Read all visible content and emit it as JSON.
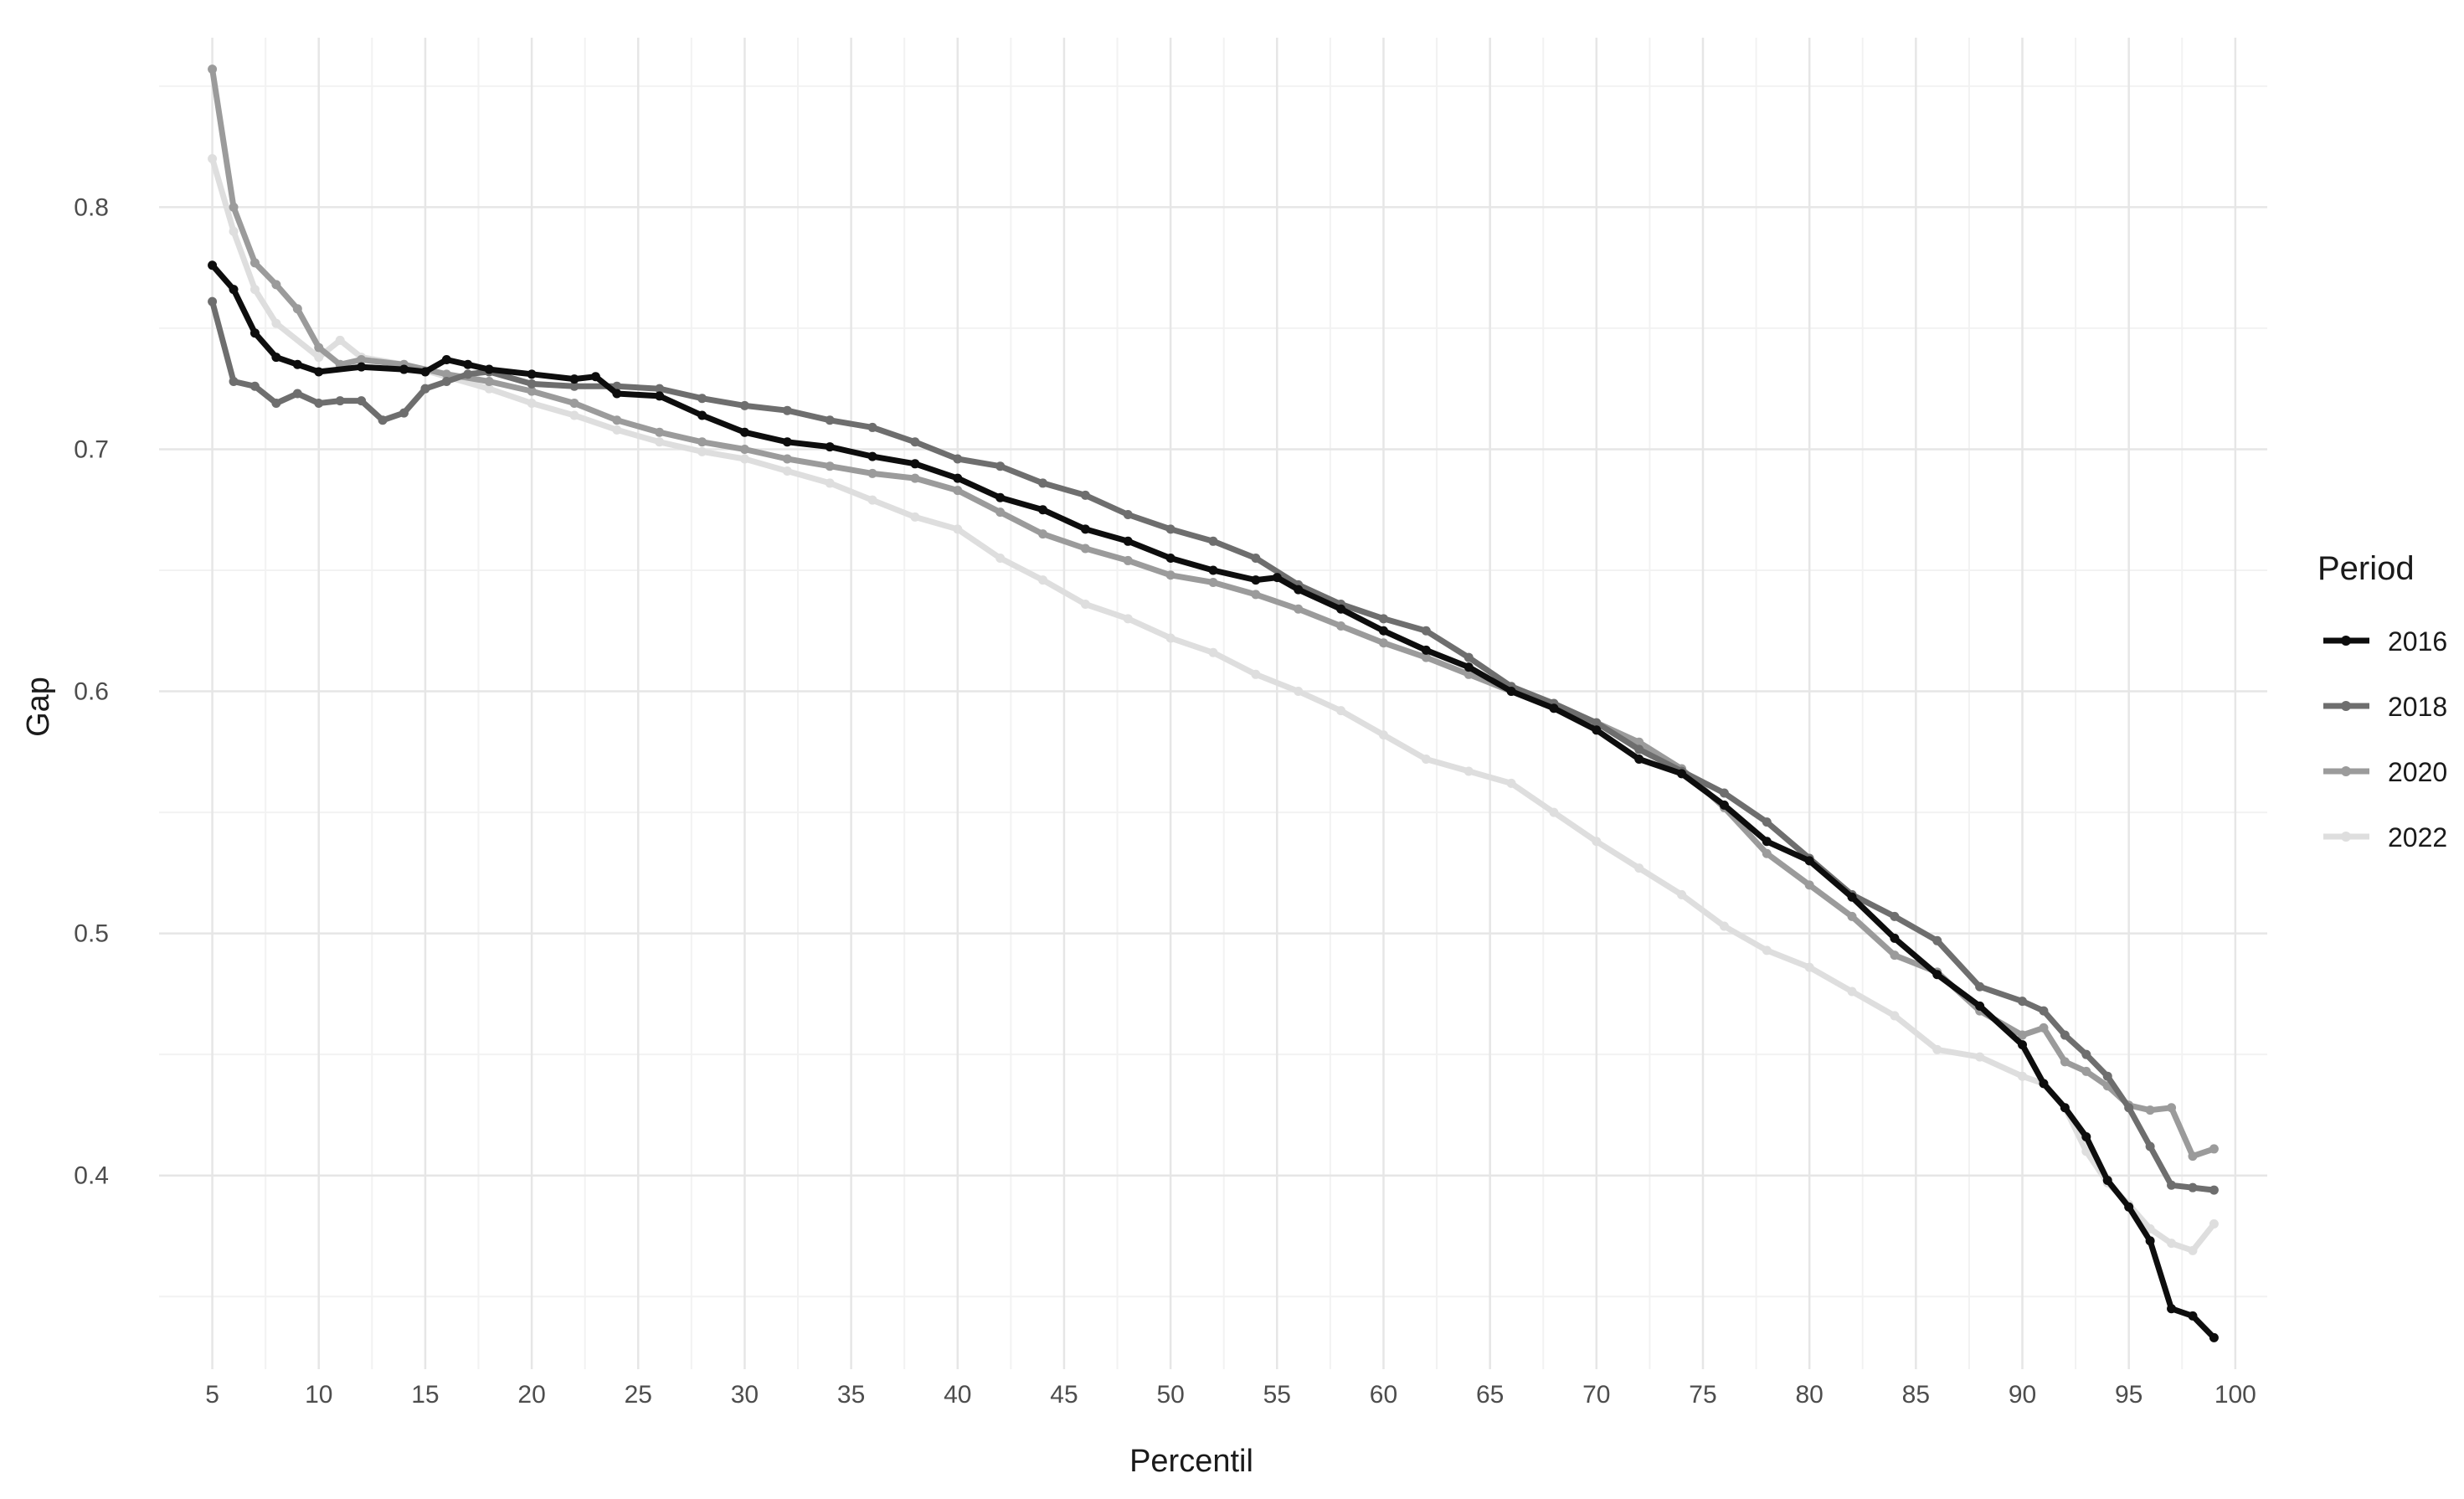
{
  "chart_data": {
    "type": "line",
    "xlabel": "Percentil",
    "ylabel": "Gap",
    "xlim": [
      2.5,
      101.5
    ],
    "ylim": [
      0.32,
      0.87
    ],
    "x_ticks": [
      5,
      10,
      15,
      20,
      25,
      30,
      35,
      40,
      45,
      50,
      55,
      60,
      65,
      70,
      75,
      80,
      85,
      90,
      95,
      100
    ],
    "y_ticks": [
      0.4,
      0.5,
      0.6,
      0.7,
      0.8
    ],
    "grid": true,
    "legend": {
      "title": "Period",
      "position": "right"
    },
    "series": [
      {
        "name": "2016",
        "color": "#0d0d0d",
        "x": [
          5,
          6,
          7,
          8,
          9,
          10,
          12,
          14,
          15,
          16,
          17,
          18,
          20,
          22,
          23,
          24,
          26,
          28,
          30,
          32,
          34,
          36,
          38,
          40,
          42,
          44,
          46,
          48,
          50,
          52,
          54,
          55,
          56,
          58,
          60,
          62,
          64,
          66,
          68,
          70,
          72,
          74,
          76,
          78,
          80,
          82,
          84,
          86,
          88,
          90,
          91,
          92,
          93,
          94,
          95,
          96,
          97,
          98,
          99
        ],
        "values": [
          0.776,
          0.766,
          0.748,
          0.738,
          0.735,
          0.732,
          0.734,
          0.733,
          0.732,
          0.737,
          0.735,
          0.733,
          0.731,
          0.729,
          0.73,
          0.723,
          0.722,
          0.714,
          0.707,
          0.703,
          0.701,
          0.697,
          0.694,
          0.688,
          0.68,
          0.675,
          0.667,
          0.662,
          0.655,
          0.65,
          0.646,
          0.647,
          0.642,
          0.634,
          0.625,
          0.617,
          0.61,
          0.6,
          0.593,
          0.584,
          0.572,
          0.566,
          0.553,
          0.538,
          0.53,
          0.515,
          0.498,
          0.483,
          0.47,
          0.454,
          0.438,
          0.428,
          0.416,
          0.398,
          0.387,
          0.373,
          0.345,
          0.342,
          0.333
        ]
      },
      {
        "name": "2018",
        "color": "#6e6e6e",
        "x": [
          5,
          6,
          7,
          8,
          9,
          10,
          11,
          12,
          13,
          14,
          15,
          16,
          17,
          18,
          20,
          22,
          24,
          26,
          28,
          30,
          32,
          34,
          36,
          38,
          40,
          42,
          44,
          46,
          48,
          50,
          52,
          54,
          56,
          58,
          60,
          62,
          64,
          66,
          68,
          70,
          72,
          74,
          76,
          78,
          80,
          82,
          84,
          86,
          88,
          90,
          91,
          92,
          93,
          94,
          95,
          96,
          97,
          98,
          99
        ],
        "values": [
          0.761,
          0.728,
          0.726,
          0.719,
          0.723,
          0.719,
          0.72,
          0.72,
          0.712,
          0.715,
          0.725,
          0.728,
          0.731,
          0.732,
          0.727,
          0.726,
          0.726,
          0.725,
          0.721,
          0.718,
          0.716,
          0.712,
          0.709,
          0.703,
          0.696,
          0.693,
          0.686,
          0.681,
          0.673,
          0.667,
          0.662,
          0.655,
          0.644,
          0.636,
          0.63,
          0.625,
          0.614,
          0.602,
          0.595,
          0.587,
          0.576,
          0.567,
          0.558,
          0.546,
          0.531,
          0.516,
          0.507,
          0.497,
          0.478,
          0.472,
          0.468,
          0.458,
          0.45,
          0.441,
          0.428,
          0.412,
          0.396,
          0.395,
          0.394
        ]
      },
      {
        "name": "2020",
        "color": "#9b9b9b",
        "x": [
          5,
          6,
          7,
          8,
          9,
          10,
          11,
          12,
          14,
          16,
          18,
          20,
          22,
          24,
          26,
          28,
          30,
          32,
          34,
          36,
          38,
          40,
          42,
          44,
          46,
          48,
          50,
          52,
          54,
          56,
          58,
          60,
          62,
          64,
          66,
          68,
          70,
          72,
          74,
          76,
          78,
          80,
          82,
          84,
          86,
          88,
          90,
          91,
          92,
          93,
          94,
          95,
          96,
          97,
          98,
          99
        ],
        "values": [
          0.857,
          0.8,
          0.777,
          0.768,
          0.758,
          0.742,
          0.735,
          0.737,
          0.735,
          0.731,
          0.728,
          0.724,
          0.719,
          0.712,
          0.707,
          0.703,
          0.7,
          0.696,
          0.693,
          0.69,
          0.688,
          0.683,
          0.674,
          0.665,
          0.659,
          0.654,
          0.648,
          0.645,
          0.64,
          0.634,
          0.627,
          0.62,
          0.614,
          0.607,
          0.6,
          0.593,
          0.587,
          0.579,
          0.568,
          0.552,
          0.533,
          0.52,
          0.507,
          0.491,
          0.484,
          0.468,
          0.458,
          0.461,
          0.447,
          0.443,
          0.437,
          0.429,
          0.427,
          0.428,
          0.408,
          0.411
        ]
      },
      {
        "name": "2022",
        "color": "#dedede",
        "x": [
          5,
          6,
          7,
          8,
          10,
          11,
          12,
          14,
          16,
          18,
          20,
          22,
          24,
          26,
          28,
          30,
          32,
          34,
          36,
          38,
          40,
          42,
          44,
          46,
          48,
          50,
          52,
          54,
          56,
          58,
          60,
          62,
          64,
          66,
          68,
          70,
          72,
          74,
          76,
          78,
          80,
          82,
          84,
          86,
          88,
          90,
          91,
          92,
          93,
          94,
          95,
          96,
          97,
          98,
          99
        ],
        "values": [
          0.82,
          0.79,
          0.766,
          0.752,
          0.738,
          0.745,
          0.738,
          0.735,
          0.73,
          0.725,
          0.719,
          0.714,
          0.708,
          0.703,
          0.699,
          0.696,
          0.691,
          0.686,
          0.679,
          0.672,
          0.667,
          0.655,
          0.646,
          0.636,
          0.63,
          0.622,
          0.616,
          0.607,
          0.6,
          0.592,
          0.582,
          0.572,
          0.567,
          0.562,
          0.55,
          0.538,
          0.527,
          0.516,
          0.503,
          0.493,
          0.486,
          0.476,
          0.466,
          0.452,
          0.449,
          0.441,
          0.438,
          0.428,
          0.41,
          0.397,
          0.388,
          0.378,
          0.372,
          0.369,
          0.38
        ]
      }
    ]
  }
}
